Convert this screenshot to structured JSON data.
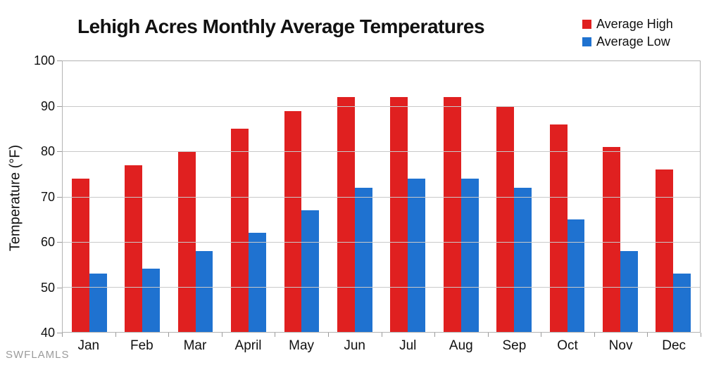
{
  "watermark": "SWFLAMLS",
  "chart_data": {
    "type": "bar",
    "title": "Lehigh Acres Monthly Average Temperatures",
    "xlabel": "",
    "ylabel": "Temperature (°F)",
    "ylim": [
      40,
      100
    ],
    "yticks": [
      40,
      50,
      60,
      70,
      80,
      90,
      100
    ],
    "grid": true,
    "legend_position": "top-right",
    "categories": [
      "Jan",
      "Feb",
      "Mar",
      "April",
      "May",
      "Jun",
      "Jul",
      "Aug",
      "Sep",
      "Oct",
      "Nov",
      "Dec"
    ],
    "series": [
      {
        "name": "Average High",
        "color": "#e02020",
        "values": [
          74,
          77,
          80,
          85,
          89,
          92,
          92,
          92,
          90,
          86,
          81,
          76
        ]
      },
      {
        "name": "Average Low",
        "color": "#1f72d0",
        "values": [
          53,
          54,
          58,
          62,
          67,
          72,
          74,
          74,
          72,
          65,
          58,
          53
        ]
      }
    ]
  }
}
